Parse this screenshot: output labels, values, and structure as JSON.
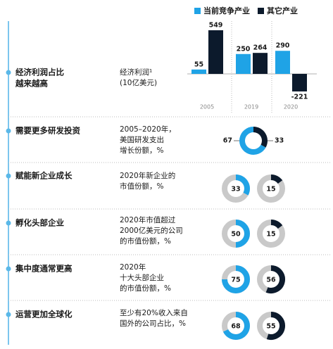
{
  "rows": [
    {
      "title": [
        "经济利润占比",
        "越来越高"
      ],
      "description": [
        "经济利润¹",
        "(10亿美元)"
      ],
      "chart": {
        "type": "bar",
        "categories": [
          "2005",
          "2019",
          "2020"
        ],
        "series": [
          {
            "name": "当前竞争产业",
            "color": "#1fa3e6",
            "values": [
              55,
              250,
              290
            ]
          },
          {
            "name": "其它产业",
            "color": "#0c1a2c",
            "values": [
              549,
              264,
              -221
            ]
          }
        ]
      }
    },
    {
      "title": [
        "需要更多研发投资"
      ],
      "description": [
        "2005–2020年，",
        "美国研发支出",
        "增长份额，%"
      ],
      "chart": {
        "type": "split_donut",
        "values": [
          67,
          33
        ],
        "colors": [
          "#1fa3e6",
          "#0c1a2c"
        ]
      }
    },
    {
      "title": [
        "赋能新企业成长"
      ],
      "description": [
        "2020年新企业的",
        "市值份额，%"
      ],
      "chart": {
        "type": "donut",
        "donuts": [
          {
            "value": 33,
            "color": "#1fa3e6"
          },
          {
            "value": 15,
            "color": "#0c1a2c"
          }
        ]
      }
    },
    {
      "title": [
        "孵化头部企业"
      ],
      "description": [
        "2020年市值超过",
        "2000亿美元的公司",
        "的市值份额，%"
      ],
      "chart": {
        "type": "donut",
        "donuts": [
          {
            "value": 50,
            "color": "#1fa3e6"
          },
          {
            "value": 15,
            "color": "#0c1a2c"
          }
        ]
      }
    },
    {
      "title": [
        "集中度通常更高"
      ],
      "description": [
        "2020年",
        "十大头部企业",
        "的市值份额，%"
      ],
      "chart": {
        "type": "donut",
        "donuts": [
          {
            "value": 75,
            "color": "#1fa3e6"
          },
          {
            "value": 56,
            "color": "#0c1a2c"
          }
        ]
      }
    },
    {
      "title": [
        "运营更加全球化"
      ],
      "description": [
        "至少有20%收入来自",
        "国外的公司占比，%"
      ],
      "chart": {
        "type": "donut",
        "donuts": [
          {
            "value": 68,
            "color": "#1fa3e6"
          },
          {
            "value": 55,
            "color": "#0c1a2c"
          }
        ]
      }
    }
  ],
  "remainder_color": "#c9c9c9"
}
